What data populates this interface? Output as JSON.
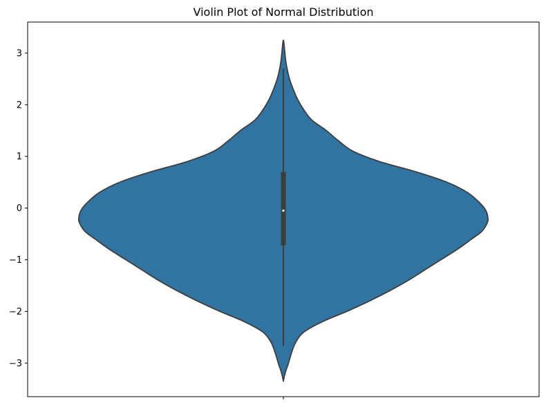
{
  "chart_data": {
    "type": "violin",
    "title": "Violin Plot of Normal Distribution",
    "xlabel": "",
    "ylabel": "",
    "ylim": [
      -3.65,
      3.6
    ],
    "yticks": [
      3,
      2,
      1,
      0,
      -1,
      -2,
      -3
    ],
    "ytick_labels": [
      "3",
      "2",
      "1",
      "0",
      "−1",
      "−2",
      "−3"
    ],
    "grid": false,
    "legend": "none",
    "fill_color": "#3274a1",
    "edge_color": "#3d3d3d",
    "violin_range": [
      -3.35,
      3.25
    ],
    "density_profile": [
      {
        "y": -3.35,
        "w": 0.0
      },
      {
        "y": -3.25,
        "w": 0.005
      },
      {
        "y": -3.15,
        "w": 0.012
      },
      {
        "y": -3.0,
        "w": 0.025
      },
      {
        "y": -2.8,
        "w": 0.04
      },
      {
        "y": -2.6,
        "w": 0.06
      },
      {
        "y": -2.4,
        "w": 0.1
      },
      {
        "y": -2.2,
        "w": 0.19
      },
      {
        "y": -2.0,
        "w": 0.31
      },
      {
        "y": -1.8,
        "w": 0.42
      },
      {
        "y": -1.6,
        "w": 0.52
      },
      {
        "y": -1.4,
        "w": 0.61
      },
      {
        "y": -1.2,
        "w": 0.69
      },
      {
        "y": -1.0,
        "w": 0.77
      },
      {
        "y": -0.8,
        "w": 0.85
      },
      {
        "y": -0.6,
        "w": 0.92
      },
      {
        "y": -0.45,
        "w": 0.97
      },
      {
        "y": -0.3,
        "w": 0.995
      },
      {
        "y": -0.2,
        "w": 1.0
      },
      {
        "y": -0.05,
        "w": 0.99
      },
      {
        "y": 0.1,
        "w": 0.96
      },
      {
        "y": 0.3,
        "w": 0.9
      },
      {
        "y": 0.5,
        "w": 0.8
      },
      {
        "y": 0.7,
        "w": 0.65
      },
      {
        "y": 0.9,
        "w": 0.47
      },
      {
        "y": 1.1,
        "w": 0.34
      },
      {
        "y": 1.3,
        "w": 0.27
      },
      {
        "y": 1.5,
        "w": 0.21
      },
      {
        "y": 1.7,
        "w": 0.14
      },
      {
        "y": 1.9,
        "w": 0.1
      },
      {
        "y": 2.1,
        "w": 0.07
      },
      {
        "y": 2.3,
        "w": 0.048
      },
      {
        "y": 2.5,
        "w": 0.03
      },
      {
        "y": 2.7,
        "w": 0.018
      },
      {
        "y": 2.9,
        "w": 0.01
      },
      {
        "y": 3.1,
        "w": 0.005
      },
      {
        "y": 3.25,
        "w": 0.0
      }
    ],
    "box": {
      "whisker_low": -2.67,
      "q1": -0.72,
      "median": -0.05,
      "q3": 0.7,
      "whisker_high": 2.7
    }
  }
}
